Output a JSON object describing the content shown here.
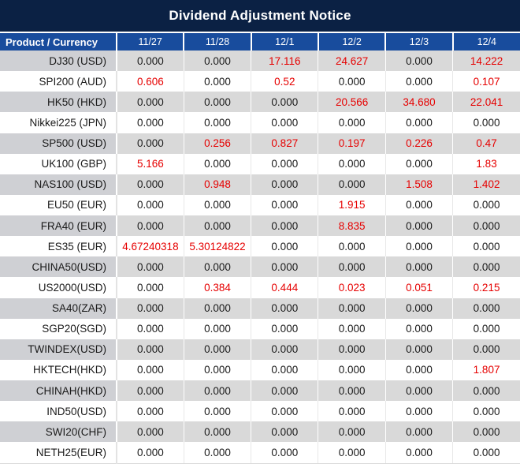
{
  "title": "Dividend Adjustment Notice",
  "colors": {
    "title_bg": "#0b2144",
    "header_bg": "#184c9d",
    "row_alt_label_bg": "#cfd0d4",
    "row_alt_value_bg": "#d9d9d9",
    "row_plain_bg": "#ffffff",
    "text": "#1a1a1a",
    "highlight": "#e60000"
  },
  "table": {
    "label_header": "Product / Currency",
    "date_headers": [
      "11/27",
      "11/28",
      "12/1",
      "12/2",
      "12/3",
      "12/4"
    ],
    "rows": [
      {
        "product": "DJ30 (USD)",
        "values": [
          "0.000",
          "0.000",
          "17.116",
          "24.627",
          "0.000",
          "14.222"
        ]
      },
      {
        "product": "SPI200 (AUD)",
        "values": [
          "0.606",
          "0.000",
          "0.52",
          "0.000",
          "0.000",
          "0.107"
        ]
      },
      {
        "product": "HK50 (HKD)",
        "values": [
          "0.000",
          "0.000",
          "0.000",
          "20.566",
          "34.680",
          "22.041"
        ]
      },
      {
        "product": "Nikkei225 (JPN)",
        "values": [
          "0.000",
          "0.000",
          "0.000",
          "0.000",
          "0.000",
          "0.000"
        ]
      },
      {
        "product": "SP500 (USD)",
        "values": [
          "0.000",
          "0.256",
          "0.827",
          "0.197",
          "0.226",
          "0.47"
        ]
      },
      {
        "product": "UK100 (GBP)",
        "values": [
          "5.166",
          "0.000",
          "0.000",
          "0.000",
          "0.000",
          "1.83"
        ]
      },
      {
        "product": "NAS100 (USD)",
        "values": [
          "0.000",
          "0.948",
          "0.000",
          "0.000",
          "1.508",
          "1.402"
        ]
      },
      {
        "product": "EU50 (EUR)",
        "values": [
          "0.000",
          "0.000",
          "0.000",
          "1.915",
          "0.000",
          "0.000"
        ]
      },
      {
        "product": "FRA40 (EUR)",
        "values": [
          "0.000",
          "0.000",
          "0.000",
          "8.835",
          "0.000",
          "0.000"
        ]
      },
      {
        "product": "ES35 (EUR)",
        "values": [
          "4.67240318",
          "5.30124822",
          "0.000",
          "0.000",
          "0.000",
          "0.000"
        ]
      },
      {
        "product": "CHINA50(USD)",
        "values": [
          "0.000",
          "0.000",
          "0.000",
          "0.000",
          "0.000",
          "0.000"
        ]
      },
      {
        "product": "US2000(USD)",
        "values": [
          "0.000",
          "0.384",
          "0.444",
          "0.023",
          "0.051",
          "0.215"
        ]
      },
      {
        "product": "SA40(ZAR)",
        "values": [
          "0.000",
          "0.000",
          "0.000",
          "0.000",
          "0.000",
          "0.000"
        ]
      },
      {
        "product": "SGP20(SGD)",
        "values": [
          "0.000",
          "0.000",
          "0.000",
          "0.000",
          "0.000",
          "0.000"
        ]
      },
      {
        "product": "TWINDEX(USD)",
        "values": [
          "0.000",
          "0.000",
          "0.000",
          "0.000",
          "0.000",
          "0.000"
        ]
      },
      {
        "product": "HKTECH(HKD)",
        "values": [
          "0.000",
          "0.000",
          "0.000",
          "0.000",
          "0.000",
          "1.807"
        ]
      },
      {
        "product": "CHINAH(HKD)",
        "values": [
          "0.000",
          "0.000",
          "0.000",
          "0.000",
          "0.000",
          "0.000"
        ]
      },
      {
        "product": "IND50(USD)",
        "values": [
          "0.000",
          "0.000",
          "0.000",
          "0.000",
          "0.000",
          "0.000"
        ]
      },
      {
        "product": "SWI20(CHF)",
        "values": [
          "0.000",
          "0.000",
          "0.000",
          "0.000",
          "0.000",
          "0.000"
        ]
      },
      {
        "product": "NETH25(EUR)",
        "values": [
          "0.000",
          "0.000",
          "0.000",
          "0.000",
          "0.000",
          "0.000"
        ]
      }
    ]
  }
}
